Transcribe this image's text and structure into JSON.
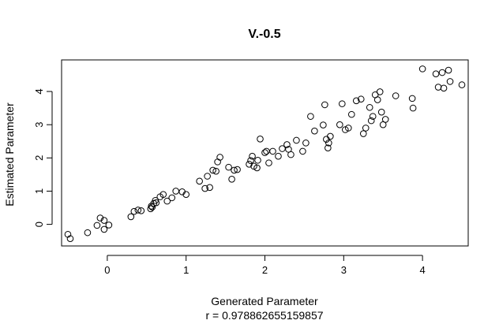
{
  "chart_data": {
    "type": "scatter",
    "title": "V.-0.5",
    "xlabel": "Generated Parameter",
    "xlabel_sub": "r = 0.978862655159857",
    "ylabel": "Estimated Parameter",
    "xlim": [
      -0.58,
      4.58
    ],
    "ylim": [
      -0.65,
      4.95
    ],
    "xticks": [
      "0",
      "1",
      "2",
      "3",
      "4"
    ],
    "yticks": [
      "0",
      "1",
      "2",
      "3",
      "4"
    ],
    "grid": false,
    "legend": "none",
    "marker": "open-circle",
    "color": "#000000",
    "points": [
      [
        -0.5,
        -0.3
      ],
      [
        -0.47,
        -0.43
      ],
      [
        -0.25,
        -0.25
      ],
      [
        -0.13,
        -0.03
      ],
      [
        -0.09,
        0.19
      ],
      [
        -0.04,
        0.12
      ],
      [
        -0.04,
        -0.15
      ],
      [
        0.02,
        -0.02
      ],
      [
        0.3,
        0.23
      ],
      [
        0.34,
        0.39
      ],
      [
        0.39,
        0.43
      ],
      [
        0.43,
        0.41
      ],
      [
        0.55,
        0.47
      ],
      [
        0.56,
        0.55
      ],
      [
        0.57,
        0.52
      ],
      [
        0.59,
        0.63
      ],
      [
        0.61,
        0.72
      ],
      [
        0.62,
        0.65
      ],
      [
        0.67,
        0.83
      ],
      [
        0.71,
        0.9
      ],
      [
        0.76,
        0.7
      ],
      [
        0.82,
        0.8
      ],
      [
        0.87,
        1.0
      ],
      [
        0.95,
        0.98
      ],
      [
        1.0,
        0.9
      ],
      [
        1.17,
        1.3
      ],
      [
        1.24,
        1.08
      ],
      [
        1.27,
        1.45
      ],
      [
        1.3,
        1.11
      ],
      [
        1.34,
        1.63
      ],
      [
        1.38,
        1.6
      ],
      [
        1.4,
        1.88
      ],
      [
        1.43,
        2.02
      ],
      [
        1.54,
        1.72
      ],
      [
        1.58,
        1.36
      ],
      [
        1.61,
        1.63
      ],
      [
        1.65,
        1.65
      ],
      [
        1.8,
        1.81
      ],
      [
        1.82,
        1.92
      ],
      [
        1.84,
        2.05
      ],
      [
        1.86,
        1.75
      ],
      [
        1.9,
        1.7
      ],
      [
        1.91,
        1.93
      ],
      [
        1.94,
        2.57
      ],
      [
        2.0,
        2.16
      ],
      [
        2.02,
        2.2
      ],
      [
        2.05,
        1.85
      ],
      [
        2.1,
        2.2
      ],
      [
        2.17,
        2.05
      ],
      [
        2.22,
        2.28
      ],
      [
        2.28,
        2.4
      ],
      [
        2.3,
        2.26
      ],
      [
        2.33,
        2.1
      ],
      [
        2.4,
        2.53
      ],
      [
        2.48,
        2.2
      ],
      [
        2.52,
        2.45
      ],
      [
        2.58,
        3.25
      ],
      [
        2.63,
        2.81
      ],
      [
        2.74,
        2.99
      ],
      [
        2.76,
        3.6
      ],
      [
        2.78,
        2.56
      ],
      [
        2.8,
        2.3
      ],
      [
        2.81,
        2.45
      ],
      [
        2.83,
        2.65
      ],
      [
        2.95,
        3.0
      ],
      [
        2.98,
        3.63
      ],
      [
        3.02,
        2.85
      ],
      [
        3.06,
        2.9
      ],
      [
        3.1,
        3.31
      ],
      [
        3.16,
        3.72
      ],
      [
        3.22,
        3.77
      ],
      [
        3.25,
        2.73
      ],
      [
        3.28,
        2.9
      ],
      [
        3.33,
        3.52
      ],
      [
        3.35,
        3.12
      ],
      [
        3.37,
        3.25
      ],
      [
        3.4,
        3.9
      ],
      [
        3.43,
        3.75
      ],
      [
        3.46,
        3.99
      ],
      [
        3.48,
        3.38
      ],
      [
        3.5,
        3.0
      ],
      [
        3.53,
        3.16
      ],
      [
        3.66,
        3.87
      ],
      [
        3.87,
        3.79
      ],
      [
        3.88,
        3.5
      ],
      [
        4.0,
        4.68
      ],
      [
        4.17,
        4.53
      ],
      [
        4.2,
        4.13
      ],
      [
        4.25,
        4.57
      ],
      [
        4.27,
        4.1
      ],
      [
        4.33,
        4.64
      ],
      [
        4.35,
        4.3
      ],
      [
        4.5,
        4.2
      ]
    ]
  }
}
